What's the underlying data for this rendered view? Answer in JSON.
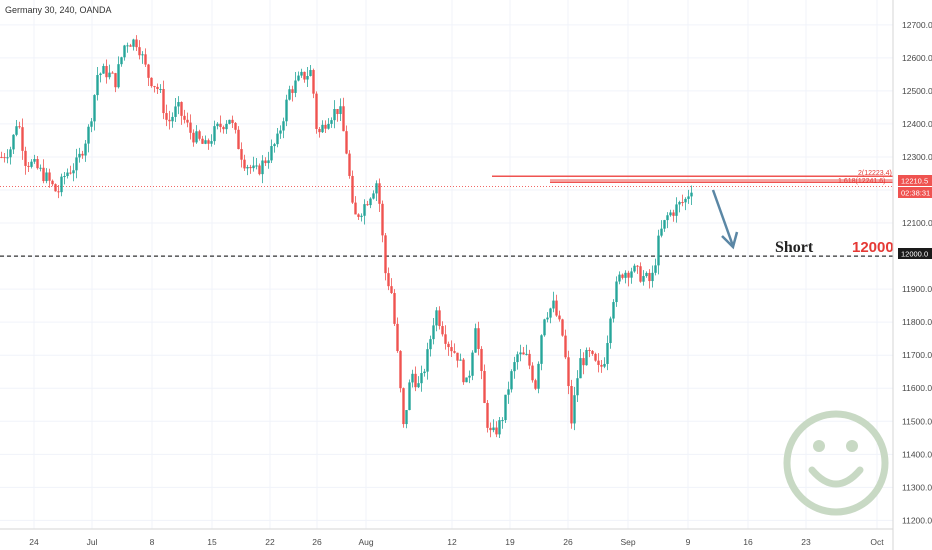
{
  "title": "Germany 30, 240, OANDA",
  "colors": {
    "up": "#26a69a",
    "down": "#ef5350",
    "annotation_label": "#222222",
    "annotation_value": "#e53935",
    "arrow": "#5b87a5",
    "smiley": "#c8d9c4",
    "grid": "#f0f3fa",
    "price_tag": "#ef5350",
    "level_line": "#ef5350",
    "dashed_line": "#333333"
  },
  "icons": {
    "watermark": "smiley-face-icon",
    "arrow": "arrow-down-icon"
  },
  "annotation": {
    "label": "Short",
    "value": "12000"
  },
  "price_tags": {
    "current": "12210.5",
    "timer": "02:38:31",
    "level": "12000.0"
  },
  "level_labels": [
    "1.618(12241.6)",
    "2(12223.4)"
  ],
  "chart_data": {
    "type": "candlestick",
    "title": "Germany 30, 240, OANDA",
    "ylim": [
      11180,
      12760
    ],
    "y_ticks": [
      11200,
      11300,
      11400,
      11500,
      11600,
      11700,
      11800,
      11900,
      12000,
      12100,
      12200,
      12300,
      12400,
      12500,
      12600,
      12700
    ],
    "y_tick_labels": [
      "11200.0",
      "11300.0",
      "11400.0",
      "11500.0",
      "11600.0",
      "11700.0",
      "11800.0",
      "11900.0",
      "12000.0",
      "12100.0",
      "12200.0",
      "12300.0",
      "12400.0",
      "12500.0",
      "12600.0",
      "12700.0"
    ],
    "x_tick_labels": [
      "24",
      "Jul",
      "8",
      "15",
      "22",
      "26",
      "Aug",
      "12",
      "19",
      "26",
      "Sep",
      "9",
      "16",
      "23",
      "Oct"
    ],
    "grid": true,
    "horizontal_levels": [
      12000,
      12210.5,
      12223.4,
      12241.6
    ],
    "close_path": [
      [
        0,
        12300
      ],
      [
        10,
        12330
      ],
      [
        16,
        12420
      ],
      [
        24,
        12290
      ],
      [
        34,
        12270
      ],
      [
        44,
        12240
      ],
      [
        56,
        12190
      ],
      [
        64,
        12250
      ],
      [
        76,
        12280
      ],
      [
        88,
        12390
      ],
      [
        96,
        12550
      ],
      [
        104,
        12560
      ],
      [
        114,
        12530
      ],
      [
        124,
        12650
      ],
      [
        136,
        12650
      ],
      [
        146,
        12550
      ],
      [
        158,
        12500
      ],
      [
        166,
        12400
      ],
      [
        176,
        12450
      ],
      [
        190,
        12370
      ],
      [
        204,
        12330
      ],
      [
        214,
        12380
      ],
      [
        228,
        12420
      ],
      [
        242,
        12290
      ],
      [
        254,
        12250
      ],
      [
        266,
        12300
      ],
      [
        276,
        12350
      ],
      [
        288,
        12500
      ],
      [
        300,
        12540
      ],
      [
        310,
        12560
      ],
      [
        316,
        12360
      ],
      [
        326,
        12420
      ],
      [
        338,
        12450
      ],
      [
        346,
        12300
      ],
      [
        352,
        12110
      ],
      [
        362,
        12150
      ],
      [
        376,
        12230
      ],
      [
        384,
        11950
      ],
      [
        390,
        11890
      ],
      [
        396,
        11700
      ],
      [
        402,
        11480
      ],
      [
        410,
        11650
      ],
      [
        418,
        11600
      ],
      [
        426,
        11700
      ],
      [
        434,
        11840
      ],
      [
        446,
        11740
      ],
      [
        456,
        11700
      ],
      [
        466,
        11600
      ],
      [
        474,
        11800
      ],
      [
        484,
        11520
      ],
      [
        490,
        11450
      ],
      [
        500,
        11500
      ],
      [
        508,
        11620
      ],
      [
        516,
        11700
      ],
      [
        526,
        11690
      ],
      [
        534,
        11610
      ],
      [
        542,
        11820
      ],
      [
        552,
        11850
      ],
      [
        562,
        11750
      ],
      [
        570,
        11500
      ],
      [
        578,
        11680
      ],
      [
        588,
        11700
      ],
      [
        598,
        11650
      ],
      [
        604,
        11700
      ],
      [
        610,
        11860
      ],
      [
        620,
        11950
      ],
      [
        630,
        11960
      ],
      [
        640,
        11940
      ],
      [
        650,
        11920
      ],
      [
        658,
        12060
      ],
      [
        666,
        12120
      ],
      [
        676,
        12150
      ],
      [
        684,
        12170
      ],
      [
        690,
        12210
      ]
    ]
  }
}
